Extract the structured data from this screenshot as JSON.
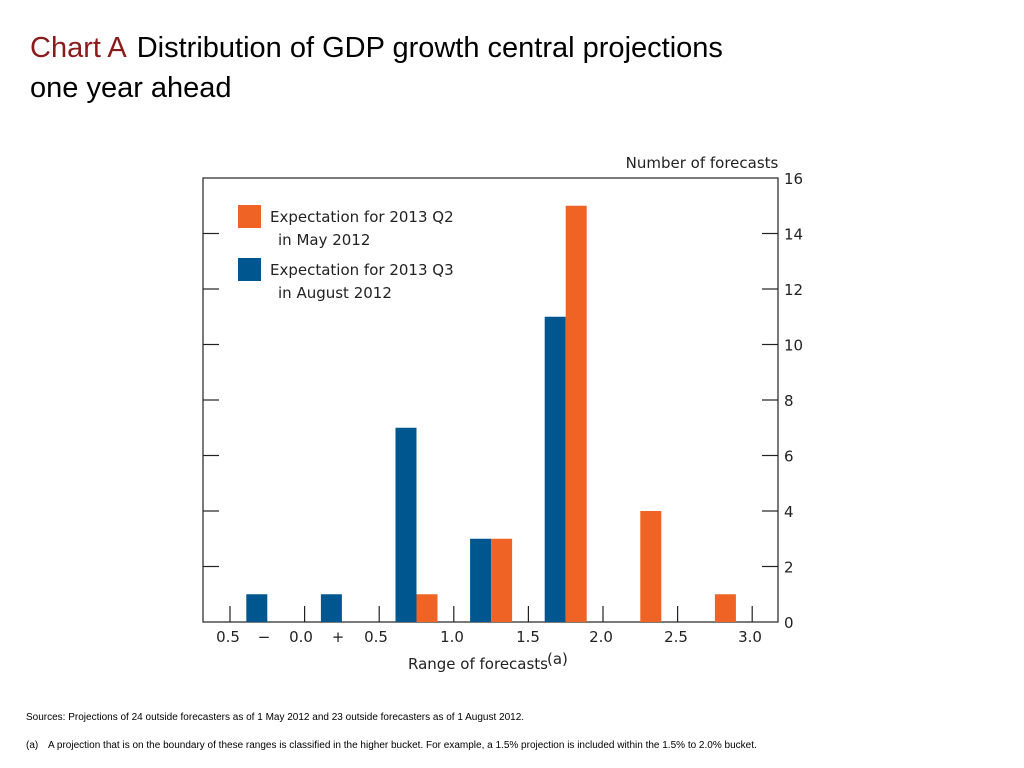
{
  "header": {
    "lead": "Chart A",
    "title_line1": "Distribution of GDP growth central projections",
    "title_line2": "one year ahead"
  },
  "colors": {
    "may_2012": "#ef6324",
    "aug_2012": "#00578f",
    "title_lead": "#8b1a1a"
  },
  "chart_data": {
    "type": "bar",
    "ylabel": "Number of forecasts",
    "xlabel": "Range of forecasts",
    "xlabel_superscript": "(a)",
    "ylim": [
      0,
      16
    ],
    "yticks": [
      "0",
      "2",
      "4",
      "6",
      "8",
      "10",
      "12",
      "14",
      "16"
    ],
    "xtick_labels": [
      "0.5",
      "−",
      "0.0",
      "+",
      "0.5",
      "1.0",
      "1.5",
      "2.0",
      "2.5",
      "3.0"
    ],
    "buckets": [
      "-0.5 to 0.0",
      "0.0 to 0.5",
      "0.5 to 1.0",
      "1.0 to 1.5",
      "1.5 to 2.0",
      "2.0 to 2.5",
      "2.5 to 3.0"
    ],
    "series": [
      {
        "name": "Expectation for 2013 Q2 in May 2012",
        "legend_line1": "Expectation for 2013 Q2",
        "legend_line2": "in May 2012",
        "values": [
          0,
          0,
          1,
          3,
          15,
          4,
          1
        ]
      },
      {
        "name": "Expectation for 2013 Q3 in August 2012",
        "legend_line1": "Expectation for 2013 Q3",
        "legend_line2": "in August 2012",
        "values": [
          1,
          1,
          7,
          3,
          11,
          0,
          0
        ]
      }
    ],
    "legend_position": "top-left",
    "grid": false
  },
  "notes": {
    "sources": "Sources:  Projections of 24 outside forecasters as of 1 May 2012 and 23 outside forecasters as of 1 August 2012.",
    "footnote_mark": "(a)",
    "footnote_text": "A projection that is on the boundary of these ranges is classified in the higher bucket.  For example, a 1.5% projection is included within the 1.5% to 2.0% bucket."
  }
}
